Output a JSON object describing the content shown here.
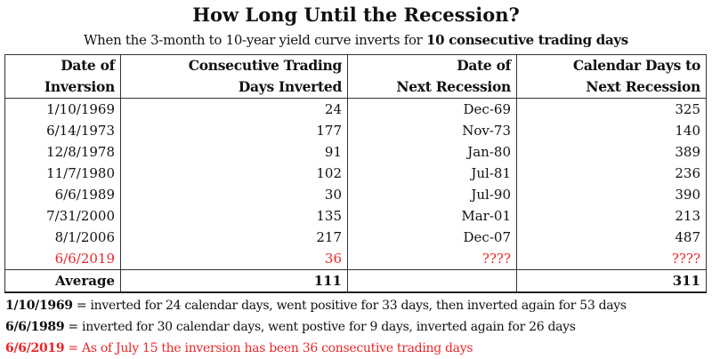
{
  "title": "How Long Until the Recession?",
  "subtitle": {
    "prefix": "When the 3-month to 10-year yield curve inverts for ",
    "bold": "10 consecutive trading days"
  },
  "headers": [
    [
      "Date of",
      "Inversion"
    ],
    [
      "Consecutive Trading",
      "Days Inverted"
    ],
    [
      "Date of",
      "Next Recession"
    ],
    [
      "Calendar Days to",
      "Next Recession"
    ]
  ],
  "rows": [
    [
      "1/10/1969",
      "24",
      "Dec-69",
      "325"
    ],
    [
      "6/14/1973",
      "177",
      "Nov-73",
      "140"
    ],
    [
      "12/8/1978",
      "91",
      "Jan-80",
      "389"
    ],
    [
      "11/7/1980",
      "102",
      "Jul-81",
      "236"
    ],
    [
      "6/6/1989",
      "30",
      "Jul-90",
      "390"
    ],
    [
      "7/31/2000",
      "135",
      "Mar-01",
      "213"
    ],
    [
      "8/1/2006",
      "217",
      "Dec-07",
      "487"
    ],
    [
      "6/6/2019",
      "36",
      "????",
      "????"
    ]
  ],
  "average": [
    "Average",
    "111",
    "",
    "311"
  ],
  "notes": [
    {
      "bold": "1/10/1969",
      "text": " = inverted for 24 calendar days, went positive for 33 days, then inverted again for 53 days"
    },
    {
      "bold": "6/6/1989",
      "text": " = inverted for 30 calendar days, went postive for 9 days, inverted again for 26 days"
    },
    {
      "bold": "6/6/2019",
      "text": " = As of July 15 the inversion has been 36 consecutive trading days"
    }
  ],
  "colors": {
    "highlight": "#e8282b"
  }
}
